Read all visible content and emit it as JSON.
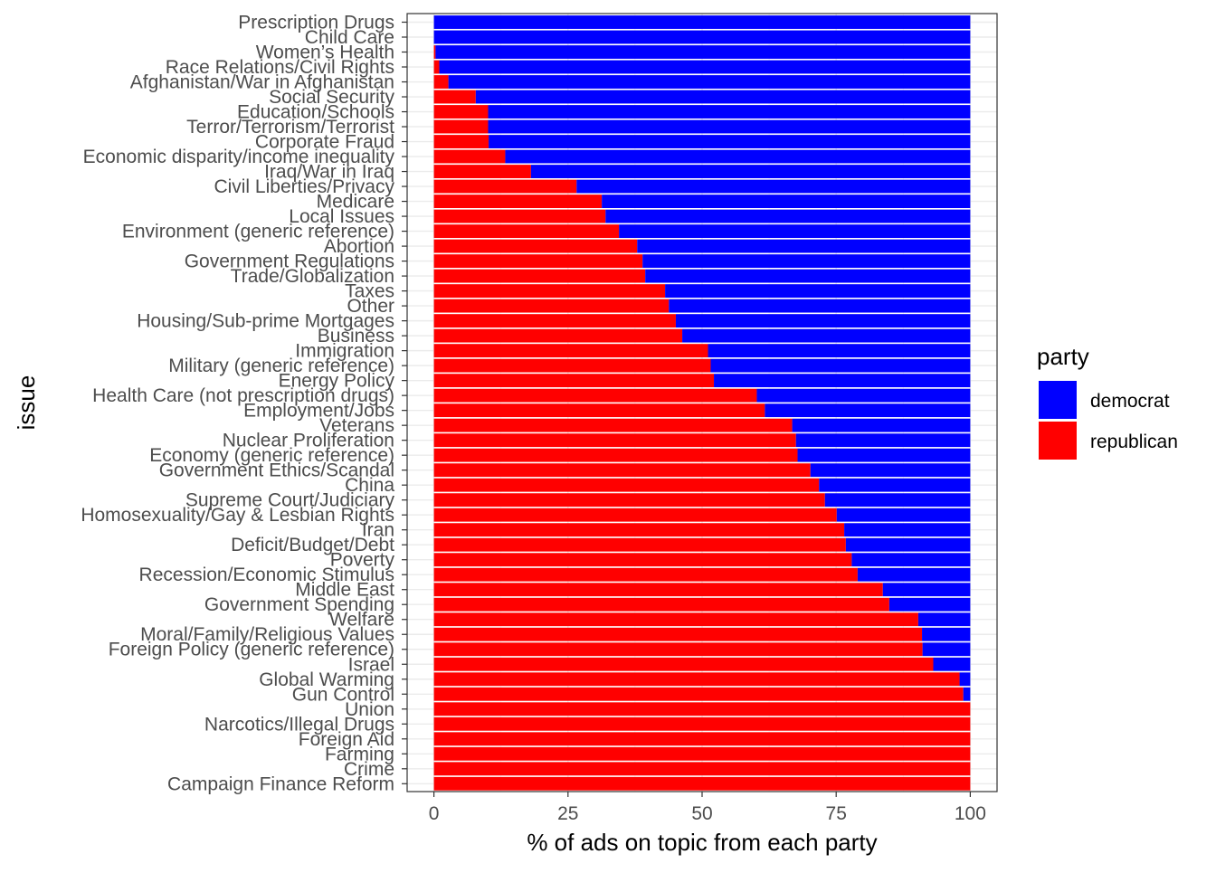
{
  "chart_data": {
    "type": "bar",
    "orientation": "horizontal",
    "stacked": true,
    "xlabel": "% of ads on topic from each party",
    "ylabel": "issue",
    "xlim": [
      0,
      100
    ],
    "xticks": [
      0,
      25,
      50,
      75,
      100
    ],
    "grid": true,
    "legend": {
      "title": "party",
      "position": "right",
      "entries": [
        {
          "name": "democrat",
          "color": "#0000FF"
        },
        {
          "name": "republican",
          "color": "#FF0000"
        }
      ]
    },
    "categories": [
      "Prescription Drugs",
      "Child Care",
      "Women’s Health",
      "Race Relations/Civil Rights",
      "Afghanistan/War in Afghanistan",
      "Social Security",
      "Education/Schools",
      "Terror/Terrorism/Terrorist",
      "Corporate Fraud",
      "Economic disparity/income inequality",
      "Iraq/War in Iraq",
      "Civil Liberties/Privacy",
      "Medicare",
      "Local Issues",
      "Environment (generic reference)",
      "Abortion",
      "Government Regulations",
      "Trade/Globalization",
      "Taxes",
      "Other",
      "Housing/Sub-prime Mortgages",
      "Business",
      "Immigration",
      "Military (generic reference)",
      "Energy Policy",
      "Health Care (not prescription drugs)",
      "Employment/Jobs",
      "Veterans",
      "Nuclear Proliferation",
      "Economy (generic reference)",
      "Government Ethics/Scandal",
      "China",
      "Supreme Court/Judiciary",
      "Homosexuality/Gay & Lesbian Rights",
      "Iran",
      "Deficit/Budget/Debt",
      "Poverty",
      "Recession/Economic Stimulus",
      "Middle East",
      "Government Spending",
      "Welfare",
      "Moral/Family/Religious Values",
      "Foreign Policy (generic reference)",
      "Israel",
      "Global Warming",
      "Gun Control",
      "Union",
      "Narcotics/Illegal Drugs",
      "Foreign Aid",
      "Farming",
      "Crime",
      "Campaign Finance Reform"
    ],
    "series": [
      {
        "name": "republican",
        "color": "#FF0000",
        "values": [
          0,
          0,
          0.3,
          1,
          2.7,
          7.8,
          10.1,
          10.1,
          10.2,
          13.3,
          18.1,
          26.6,
          31.3,
          32,
          34.5,
          37.9,
          38.9,
          39.4,
          43.1,
          43.8,
          45.1,
          46.3,
          51.1,
          51.6,
          52.2,
          60.2,
          61.7,
          66.8,
          67.5,
          67.8,
          70.2,
          71.8,
          72.9,
          75.1,
          76.5,
          76.8,
          77.9,
          79,
          83.7,
          84.9,
          90.3,
          91,
          91.1,
          93.1,
          98,
          98.7,
          100,
          100,
          100,
          100,
          100,
          100
        ]
      },
      {
        "name": "democrat",
        "color": "#0000FF",
        "values": [
          100,
          100,
          99.7,
          99,
          97.3,
          92.2,
          89.9,
          89.9,
          89.8,
          86.7,
          81.9,
          73.4,
          68.7,
          68,
          65.5,
          62.1,
          61.1,
          60.6,
          56.9,
          56.2,
          54.9,
          53.7,
          48.9,
          48.4,
          47.8,
          39.8,
          38.3,
          33.2,
          32.5,
          32.2,
          29.8,
          28.2,
          27.1,
          24.9,
          23.5,
          23.2,
          22.1,
          21,
          16.3,
          15.1,
          9.7,
          9,
          8.9,
          6.9,
          2,
          1.3,
          0,
          0,
          0,
          0,
          0,
          0
        ]
      }
    ]
  }
}
